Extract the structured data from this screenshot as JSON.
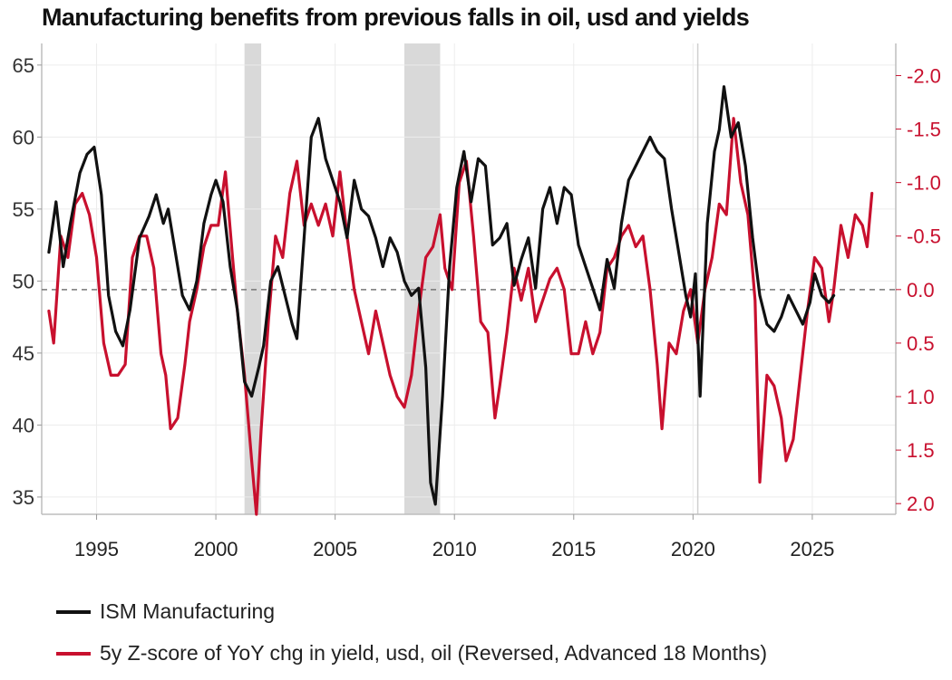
{
  "colors": {
    "ism": "#111111",
    "zscore": "#c8102e",
    "recession": "#d9d9d9",
    "grid": "#ececec"
  },
  "chart_data": {
    "type": "line",
    "title": "Manufacturing benefits from previous falls in oil, usd and yields",
    "xlim": [
      1992.7,
      2028.5
    ],
    "x_ticks": [
      1995,
      2000,
      2005,
      2010,
      2015,
      2020,
      2025
    ],
    "y_left": {
      "lim": [
        33.8,
        66.5
      ],
      "ticks": [
        35,
        40,
        45,
        50,
        55,
        60,
        65
      ]
    },
    "y_right": {
      "lim": [
        2.1,
        -2.3
      ],
      "reversed": true,
      "ticks": [
        2.0,
        1.5,
        1.0,
        0.5,
        0.0,
        -0.5,
        -1.0,
        -1.5,
        -2.0
      ],
      "tick_labels": [
        "2.0",
        "1.5",
        "1.0",
        "0.5",
        "0.0",
        "-0.5",
        "-1.0",
        "-1.5",
        "-2.0"
      ]
    },
    "reference_line": {
      "axis": "right",
      "value": 0.0,
      "style": "dashed"
    },
    "vline": 2020.2,
    "recessions": [
      [
        2001.2,
        2001.9
      ],
      [
        2007.9,
        2009.4
      ]
    ],
    "series": [
      {
        "name": "ISM Manufacturing",
        "axis": "left",
        "color": "#111111",
        "points": [
          [
            1993.0,
            52
          ],
          [
            1993.3,
            55.5
          ],
          [
            1993.6,
            51
          ],
          [
            1993.9,
            54
          ],
          [
            1994.3,
            57.5
          ],
          [
            1994.6,
            58.8
          ],
          [
            1994.9,
            59.3
          ],
          [
            1995.2,
            56
          ],
          [
            1995.5,
            49
          ],
          [
            1995.8,
            46.5
          ],
          [
            1996.1,
            45.5
          ],
          [
            1996.4,
            48
          ],
          [
            1996.8,
            53
          ],
          [
            1997.2,
            54.5
          ],
          [
            1997.5,
            56
          ],
          [
            1997.8,
            54
          ],
          [
            1998.0,
            55
          ],
          [
            1998.3,
            52
          ],
          [
            1998.6,
            49
          ],
          [
            1998.9,
            48
          ],
          [
            1999.2,
            50
          ],
          [
            1999.5,
            54
          ],
          [
            1999.8,
            56
          ],
          [
            2000.0,
            57
          ],
          [
            2000.3,
            55.5
          ],
          [
            2000.6,
            51
          ],
          [
            2000.9,
            48
          ],
          [
            2001.2,
            43
          ],
          [
            2001.5,
            42
          ],
          [
            2001.8,
            44
          ],
          [
            2002.0,
            45.5
          ],
          [
            2002.3,
            50
          ],
          [
            2002.6,
            51
          ],
          [
            2002.9,
            49
          ],
          [
            2003.2,
            47
          ],
          [
            2003.4,
            46
          ],
          [
            2003.7,
            53
          ],
          [
            2004.0,
            60
          ],
          [
            2004.3,
            61.3
          ],
          [
            2004.6,
            58.5
          ],
          [
            2004.9,
            57
          ],
          [
            2005.2,
            55.5
          ],
          [
            2005.5,
            53
          ],
          [
            2005.8,
            57
          ],
          [
            2006.1,
            55
          ],
          [
            2006.4,
            54.5
          ],
          [
            2006.7,
            53
          ],
          [
            2007.0,
            51
          ],
          [
            2007.3,
            53
          ],
          [
            2007.6,
            52
          ],
          [
            2007.9,
            50
          ],
          [
            2008.2,
            49
          ],
          [
            2008.5,
            49.5
          ],
          [
            2008.8,
            44
          ],
          [
            2009.0,
            36
          ],
          [
            2009.2,
            34.5
          ],
          [
            2009.5,
            42
          ],
          [
            2009.8,
            51
          ],
          [
            2010.1,
            56.5
          ],
          [
            2010.4,
            59
          ],
          [
            2010.7,
            55.5
          ],
          [
            2011.0,
            58.5
          ],
          [
            2011.3,
            58
          ],
          [
            2011.6,
            52.5
          ],
          [
            2011.9,
            53
          ],
          [
            2012.2,
            54
          ],
          [
            2012.5,
            49.7
          ],
          [
            2012.8,
            51.5
          ],
          [
            2013.1,
            53
          ],
          [
            2013.4,
            49.5
          ],
          [
            2013.7,
            55
          ],
          [
            2014.0,
            56.5
          ],
          [
            2014.3,
            54
          ],
          [
            2014.6,
            56.5
          ],
          [
            2014.9,
            56
          ],
          [
            2015.2,
            52.5
          ],
          [
            2015.5,
            51
          ],
          [
            2015.8,
            49.5
          ],
          [
            2016.1,
            48
          ],
          [
            2016.4,
            51.5
          ],
          [
            2016.7,
            49.5
          ],
          [
            2017.0,
            54
          ],
          [
            2017.3,
            57
          ],
          [
            2017.6,
            58
          ],
          [
            2017.9,
            59
          ],
          [
            2018.2,
            60
          ],
          [
            2018.5,
            59
          ],
          [
            2018.8,
            58.5
          ],
          [
            2019.1,
            55
          ],
          [
            2019.4,
            52
          ],
          [
            2019.7,
            49
          ],
          [
            2019.9,
            47.5
          ],
          [
            2020.1,
            50.5
          ],
          [
            2020.3,
            42
          ],
          [
            2020.6,
            54
          ],
          [
            2020.9,
            59
          ],
          [
            2021.1,
            60.5
          ],
          [
            2021.3,
            63.5
          ],
          [
            2021.6,
            60
          ],
          [
            2021.9,
            61
          ],
          [
            2022.2,
            58
          ],
          [
            2022.5,
            53
          ],
          [
            2022.8,
            49
          ],
          [
            2023.1,
            47
          ],
          [
            2023.4,
            46.5
          ],
          [
            2023.7,
            47.5
          ],
          [
            2024.0,
            49
          ],
          [
            2024.3,
            48
          ],
          [
            2024.6,
            47
          ],
          [
            2024.9,
            48.5
          ],
          [
            2025.1,
            50.5
          ],
          [
            2025.4,
            49
          ],
          [
            2025.7,
            48.5
          ],
          [
            2025.9,
            49
          ]
        ]
      },
      {
        "name": "5y Z-score of YoY chg in yield, usd, oil (Reversed, Advanced 18 Months)",
        "axis": "right",
        "color": "#c8102e",
        "points": [
          [
            1993.0,
            0.2
          ],
          [
            1993.2,
            0.5
          ],
          [
            1993.5,
            -0.5
          ],
          [
            1993.8,
            -0.3
          ],
          [
            1994.1,
            -0.8
          ],
          [
            1994.4,
            -0.9
          ],
          [
            1994.7,
            -0.7
          ],
          [
            1995.0,
            -0.3
          ],
          [
            1995.3,
            0.5
          ],
          [
            1995.6,
            0.8
          ],
          [
            1995.9,
            0.8
          ],
          [
            1996.2,
            0.7
          ],
          [
            1996.5,
            -0.3
          ],
          [
            1996.8,
            -0.5
          ],
          [
            1997.1,
            -0.5
          ],
          [
            1997.4,
            -0.2
          ],
          [
            1997.7,
            0.6
          ],
          [
            1997.9,
            0.8
          ],
          [
            1998.1,
            1.3
          ],
          [
            1998.4,
            1.2
          ],
          [
            1998.7,
            0.7
          ],
          [
            1998.9,
            0.3
          ],
          [
            1999.2,
            0.0
          ],
          [
            1999.5,
            -0.4
          ],
          [
            1999.8,
            -0.6
          ],
          [
            2000.1,
            -0.6
          ],
          [
            2000.4,
            -1.1
          ],
          [
            2000.7,
            -0.3
          ],
          [
            2000.9,
            0.2
          ],
          [
            2001.2,
            0.8
          ],
          [
            2001.5,
            1.6
          ],
          [
            2001.7,
            2.1
          ],
          [
            2001.9,
            1.3
          ],
          [
            2002.2,
            0.3
          ],
          [
            2002.5,
            -0.5
          ],
          [
            2002.8,
            -0.3
          ],
          [
            2003.1,
            -0.9
          ],
          [
            2003.4,
            -1.2
          ],
          [
            2003.7,
            -0.6
          ],
          [
            2004.0,
            -0.8
          ],
          [
            2004.3,
            -0.6
          ],
          [
            2004.6,
            -0.8
          ],
          [
            2004.9,
            -0.5
          ],
          [
            2005.2,
            -1.1
          ],
          [
            2005.5,
            -0.5
          ],
          [
            2005.8,
            0.0
          ],
          [
            2006.1,
            0.3
          ],
          [
            2006.4,
            0.6
          ],
          [
            2006.7,
            0.2
          ],
          [
            2007.0,
            0.5
          ],
          [
            2007.3,
            0.8
          ],
          [
            2007.6,
            1.0
          ],
          [
            2007.9,
            1.1
          ],
          [
            2008.2,
            0.8
          ],
          [
            2008.5,
            0.2
          ],
          [
            2008.8,
            -0.3
          ],
          [
            2009.1,
            -0.4
          ],
          [
            2009.4,
            -0.7
          ],
          [
            2009.6,
            -0.2
          ],
          [
            2009.9,
            0.0
          ],
          [
            2010.2,
            -1.0
          ],
          [
            2010.5,
            -1.2
          ],
          [
            2010.8,
            -0.5
          ],
          [
            2011.1,
            0.3
          ],
          [
            2011.4,
            0.4
          ],
          [
            2011.7,
            1.2
          ],
          [
            2011.9,
            0.9
          ],
          [
            2012.2,
            0.4
          ],
          [
            2012.5,
            -0.2
          ],
          [
            2012.8,
            0.1
          ],
          [
            2013.1,
            -0.2
          ],
          [
            2013.4,
            0.3
          ],
          [
            2013.7,
            0.1
          ],
          [
            2014.0,
            -0.1
          ],
          [
            2014.3,
            -0.2
          ],
          [
            2014.6,
            0.0
          ],
          [
            2014.9,
            0.6
          ],
          [
            2015.2,
            0.6
          ],
          [
            2015.5,
            0.3
          ],
          [
            2015.8,
            0.6
          ],
          [
            2016.1,
            0.4
          ],
          [
            2016.4,
            -0.2
          ],
          [
            2016.7,
            -0.3
          ],
          [
            2017.0,
            -0.5
          ],
          [
            2017.3,
            -0.6
          ],
          [
            2017.6,
            -0.4
          ],
          [
            2017.9,
            -0.5
          ],
          [
            2018.2,
            0.0
          ],
          [
            2018.5,
            0.7
          ],
          [
            2018.7,
            1.3
          ],
          [
            2019.0,
            0.5
          ],
          [
            2019.3,
            0.6
          ],
          [
            2019.6,
            0.2
          ],
          [
            2019.9,
            0.0
          ],
          [
            2020.2,
            0.5
          ],
          [
            2020.5,
            0.0
          ],
          [
            2020.8,
            -0.3
          ],
          [
            2021.1,
            -0.8
          ],
          [
            2021.4,
            -0.7
          ],
          [
            2021.7,
            -1.6
          ],
          [
            2022.0,
            -1.0
          ],
          [
            2022.3,
            -0.7
          ],
          [
            2022.6,
            0.1
          ],
          [
            2022.8,
            1.8
          ],
          [
            2023.1,
            0.8
          ],
          [
            2023.4,
            0.9
          ],
          [
            2023.7,
            1.2
          ],
          [
            2023.9,
            1.6
          ],
          [
            2024.2,
            1.4
          ],
          [
            2024.5,
            0.8
          ],
          [
            2024.8,
            0.2
          ],
          [
            2025.1,
            -0.3
          ],
          [
            2025.4,
            -0.2
          ],
          [
            2025.7,
            0.3
          ],
          [
            2025.9,
            0.0
          ],
          [
            2026.2,
            -0.6
          ],
          [
            2026.5,
            -0.3
          ],
          [
            2026.8,
            -0.7
          ],
          [
            2027.1,
            -0.6
          ],
          [
            2027.3,
            -0.4
          ],
          [
            2027.5,
            -0.9
          ]
        ]
      }
    ]
  },
  "legend": {
    "ism_label": "ISM Manufacturing",
    "zscore_label": "5y Z-score of YoY chg in yield, usd, oil (Reversed, Advanced 18 Months)"
  }
}
